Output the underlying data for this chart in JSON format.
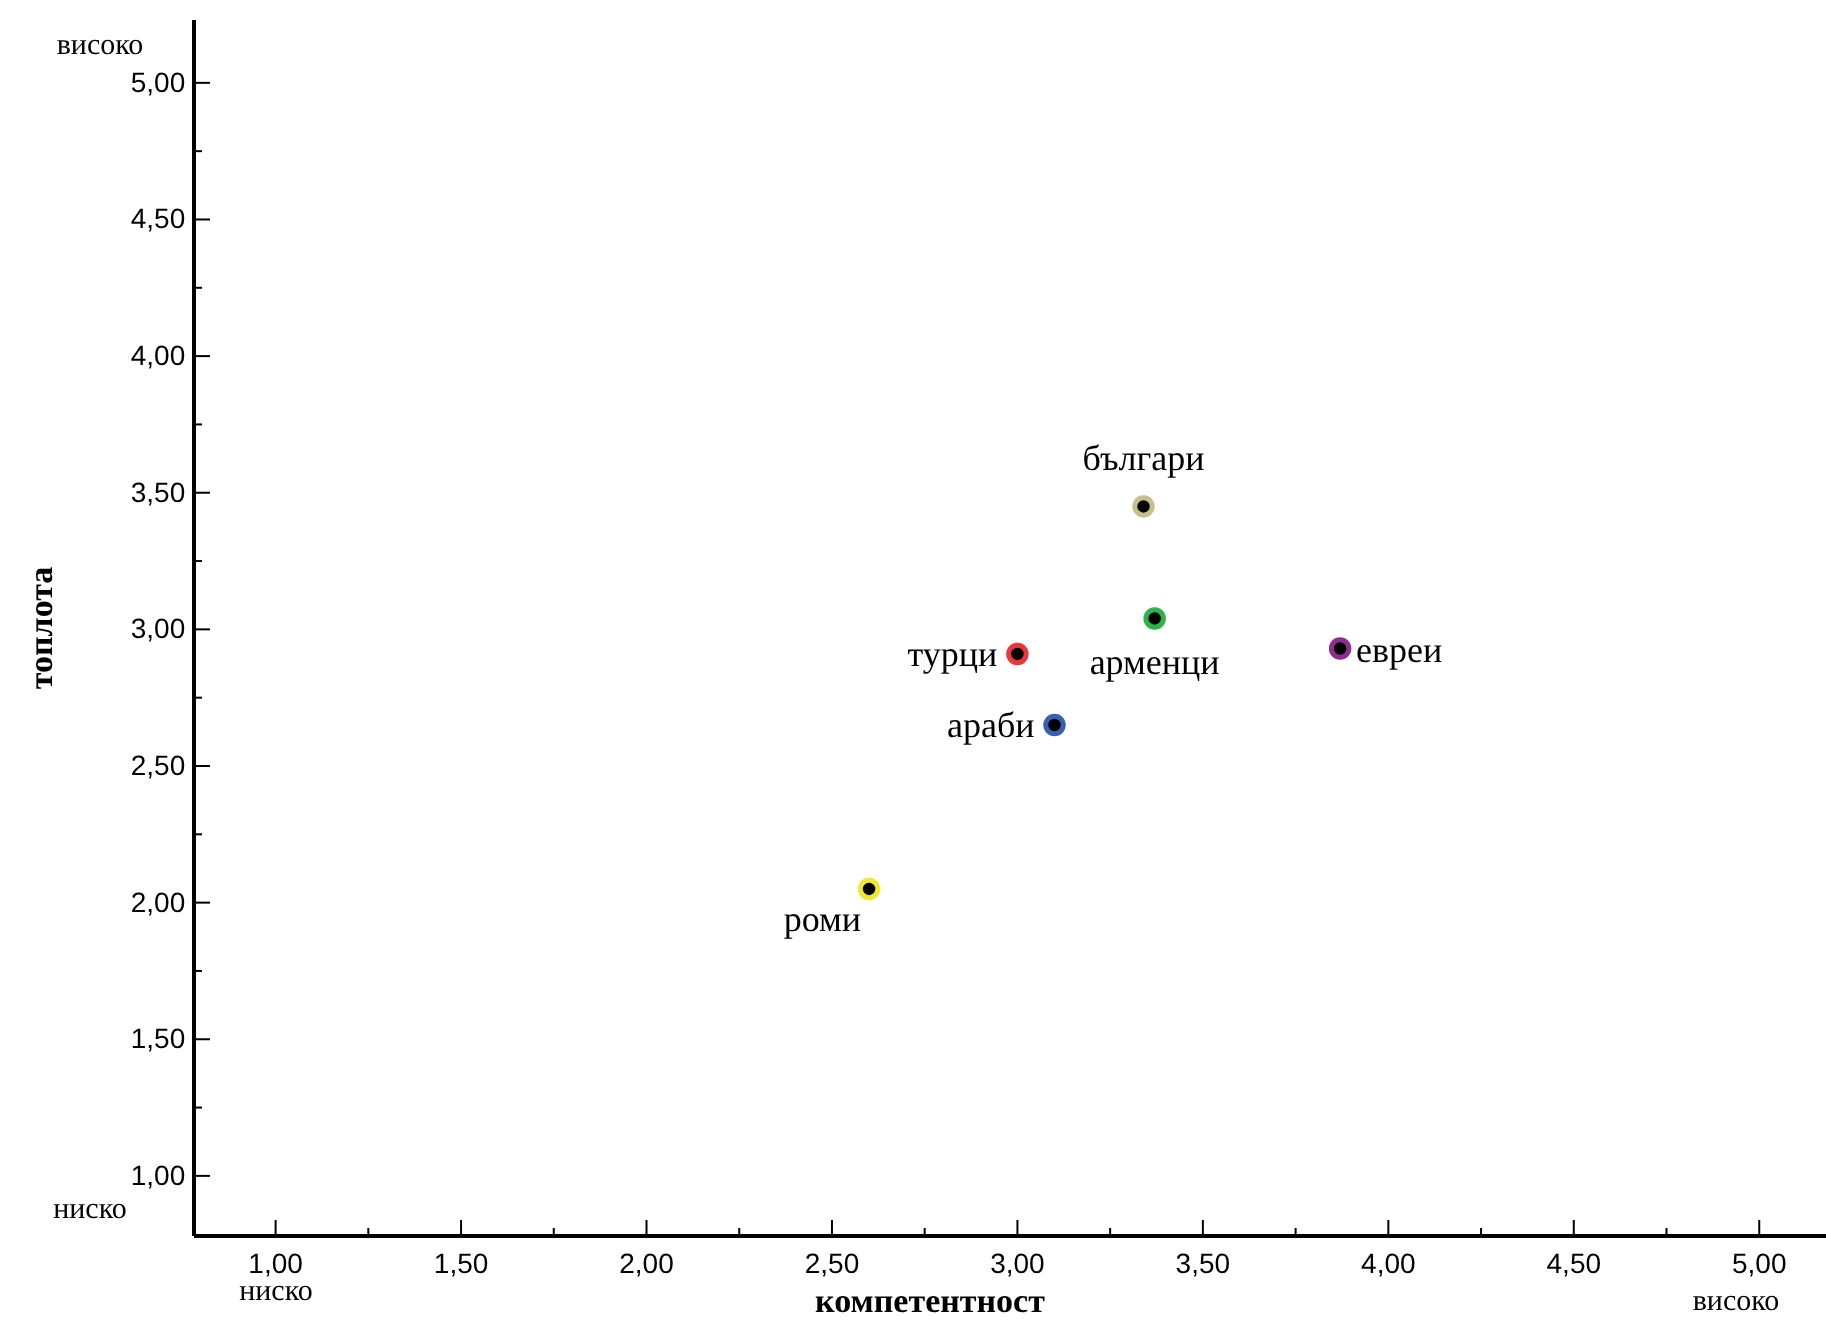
{
  "chart_data": {
    "type": "scatter",
    "xlabel": "компетентност",
    "ylabel": "топлота",
    "xlim": [
      0.78,
      5.18
    ],
    "ylim": [
      0.78,
      5.23
    ],
    "xticks": [
      {
        "value": 1,
        "label": "1,00"
      },
      {
        "value": 1.25,
        "label": null
      },
      {
        "value": 1.5,
        "label": "1,50"
      },
      {
        "value": 1.75,
        "label": null
      },
      {
        "value": 2,
        "label": "2,00"
      },
      {
        "value": 2.25,
        "label": null
      },
      {
        "value": 2.5,
        "label": "2,50"
      },
      {
        "value": 2.75,
        "label": null
      },
      {
        "value": 3,
        "label": "3,00"
      },
      {
        "value": 3.25,
        "label": null
      },
      {
        "value": 3.5,
        "label": "3,50"
      },
      {
        "value": 3.75,
        "label": null
      },
      {
        "value": 4,
        "label": "4,00"
      },
      {
        "value": 4.25,
        "label": null
      },
      {
        "value": 4.5,
        "label": "4,50"
      },
      {
        "value": 4.75,
        "label": null
      },
      {
        "value": 5,
        "label": "5,00"
      }
    ],
    "yticks": [
      {
        "value": 1,
        "label": "1,00"
      },
      {
        "value": 1.25,
        "label": null
      },
      {
        "value": 1.5,
        "label": "1,50"
      },
      {
        "value": 1.75,
        "label": null
      },
      {
        "value": 2,
        "label": "2,00"
      },
      {
        "value": 2.25,
        "label": null
      },
      {
        "value": 2.5,
        "label": "2,50"
      },
      {
        "value": 2.75,
        "label": null
      },
      {
        "value": 3,
        "label": "3,00"
      },
      {
        "value": 3.25,
        "label": null
      },
      {
        "value": 3.5,
        "label": "3,50"
      },
      {
        "value": 3.75,
        "label": null
      },
      {
        "value": 4,
        "label": "4,00"
      },
      {
        "value": 4.25,
        "label": null
      },
      {
        "value": 4.5,
        "label": "4,50"
      },
      {
        "value": 4.75,
        "label": null
      },
      {
        "value": 5,
        "label": "5,00"
      }
    ],
    "grid": false,
    "marker": "circle",
    "series": [
      {
        "name": "българи",
        "color": "#c8c08a",
        "x": [
          3.34
        ],
        "values": [
          3.45
        ]
      },
      {
        "name": "арменци",
        "color": "#2db34a",
        "x": [
          3.37
        ],
        "values": [
          3.04
        ]
      },
      {
        "name": "турци",
        "color": "#e8383d",
        "x": [
          3.0
        ],
        "values": [
          2.91
        ]
      },
      {
        "name": "евреи",
        "color": "#8e2e8e",
        "x": [
          3.87
        ],
        "values": [
          2.93
        ]
      },
      {
        "name": "араби",
        "color": "#3a5fb0",
        "x": [
          3.1
        ],
        "values": [
          2.65
        ]
      },
      {
        "name": "роми",
        "color": "#f0e830",
        "x": [
          2.6
        ],
        "values": [
          2.05
        ]
      }
    ],
    "annotations": [
      "високо",
      "ниско",
      "ниско",
      "високо"
    ]
  }
}
